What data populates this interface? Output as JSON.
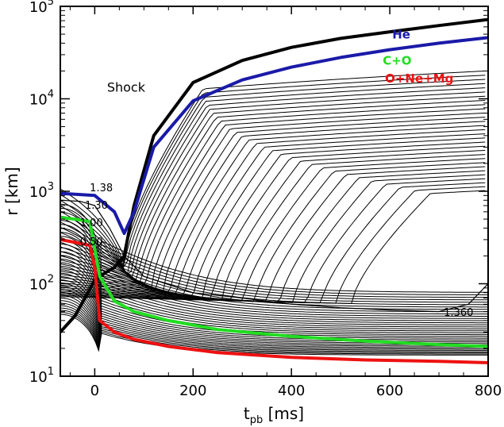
{
  "chart_data": {
    "type": "line",
    "title": "",
    "xlabel_main": "t",
    "xlabel_sub": "pb",
    "xlabel_unit": " [ms]",
    "ylabel": "r [km]",
    "xlim": [
      -70,
      800
    ],
    "ylim": [
      10,
      100000
    ],
    "yscale": "log",
    "grid": false,
    "legend": "none",
    "x_ticks": [
      0,
      200,
      400,
      600,
      800
    ],
    "x_tick_labels": [
      "0",
      "200",
      "400",
      "600",
      "800"
    ],
    "y_ticks": [
      10,
      100,
      1000,
      10000,
      100000
    ],
    "y_tick_labels": [
      {
        "base": "10",
        "exp": "1"
      },
      {
        "base": "10",
        "exp": "2"
      },
      {
        "base": "10",
        "exp": "3"
      },
      {
        "base": "10",
        "exp": "4"
      },
      {
        "base": "10",
        "exp": "5"
      }
    ],
    "annotations": {
      "shock": {
        "text": "Shock",
        "x": 25,
        "y": 12000,
        "color": "#000000"
      },
      "he": {
        "text": "He",
        "x": 605,
        "y": 45000,
        "color": "#1a1aa8"
      },
      "co": {
        "text": "C+O",
        "x": 615,
        "y": 23500,
        "color": "#22dd22"
      },
      "onemg": {
        "text": "O+Ne+Mg",
        "x": 660,
        "y": 15000,
        "color": "#ee1111"
      },
      "m138": {
        "text": "1.38",
        "x": -10,
        "y": 1000
      },
      "m130": {
        "text": "1.30",
        "x": -20,
        "y": 650
      },
      "m100": {
        "text": "1.00",
        "x": -30,
        "y": 420
      },
      "m050": {
        "text": "0.50",
        "x": -30,
        "y": 260
      },
      "m1360": {
        "text": "1.360",
        "x": 710,
        "y": 45
      }
    },
    "series": [
      {
        "role": "shock",
        "color": "#000000",
        "x": [
          -70,
          -40,
          -20,
          0,
          20,
          40,
          60,
          80,
          120,
          200,
          300,
          400,
          500,
          600,
          700,
          800
        ],
        "y": [
          30,
          45,
          70,
          110,
          130,
          150,
          200,
          700,
          4000,
          15000,
          26000,
          36000,
          45000,
          53000,
          62000,
          72000
        ]
      },
      {
        "role": "he",
        "color": "#1a1aa8",
        "x": [
          -70,
          -40,
          0,
          40,
          60,
          80,
          120,
          200,
          300,
          400,
          500,
          600,
          700,
          800
        ],
        "y": [
          950,
          930,
          900,
          600,
          350,
          600,
          3000,
          9500,
          16000,
          22000,
          28000,
          34000,
          40000,
          46000
        ]
      },
      {
        "role": "co",
        "color": "#22dd22",
        "x": [
          -70,
          -40,
          -10,
          10,
          40,
          80,
          150,
          250,
          400,
          550,
          700,
          800
        ],
        "y": [
          520,
          500,
          470,
          120,
          65,
          50,
          40,
          32,
          27,
          24,
          22,
          21
        ]
      },
      {
        "role": "onemg",
        "color": "#ee1111",
        "x": [
          -70,
          -40,
          -10,
          0,
          10,
          40,
          80,
          150,
          250,
          400,
          550,
          700,
          800
        ],
        "y": [
          300,
          280,
          260,
          150,
          40,
          30,
          25,
          21,
          18,
          16,
          15,
          14.5,
          14
        ]
      },
      {
        "role": "mass-1.360",
        "color": "#000000",
        "x": [
          -70,
          -30,
          0,
          30,
          60,
          100,
          200,
          300,
          400,
          500,
          600,
          700,
          760,
          800
        ],
        "y": [
          800,
          780,
          700,
          400,
          200,
          120,
          80,
          70,
          60,
          55,
          52,
          50,
          60,
          100
        ]
      }
    ]
  }
}
